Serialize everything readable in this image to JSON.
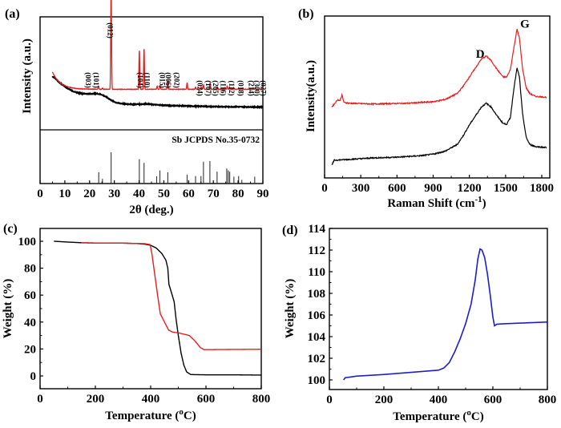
{
  "chart_data": [
    {
      "id": "a",
      "panel_label": "(a)",
      "type": "line",
      "title": "",
      "xlabel": "2θ (deg.)",
      "ylabel": "Intensity (a.u.)",
      "xlim": [
        0,
        90
      ],
      "xticks": [
        0,
        10,
        20,
        30,
        40,
        50,
        60,
        70,
        80,
        90
      ],
      "grid": false,
      "series": [
        {
          "name": "red-pattern",
          "color": "#e0201f",
          "baseline": 0.36,
          "start": 0.52,
          "peaks": [
            [
              23.6,
              0.03
            ],
            [
              25.2,
              0.01
            ],
            [
              28.7,
              0.97
            ],
            [
              40.1,
              0.36
            ],
            [
              42.0,
              0.38
            ],
            [
              47.3,
              0.03
            ],
            [
              48.5,
              0.04
            ],
            [
              51.6,
              0.08
            ],
            [
              59.4,
              0.06
            ],
            [
              62.8,
              0.02
            ],
            [
              65.0,
              0.02
            ],
            [
              66.0,
              0.04
            ],
            [
              68.7,
              0.06
            ],
            [
              71.6,
              0.02
            ],
            [
              75.6,
              0.03
            ],
            [
              76.5,
              0.02
            ],
            [
              78.3,
              0.01
            ],
            [
              80.2,
              0.01
            ],
            [
              86.9,
              0.01
            ]
          ],
          "x_start": 5
        },
        {
          "name": "black-pattern",
          "color": "#000000",
          "x_start": 5,
          "points": [
            [
              5,
              0.48
            ],
            [
              8,
              0.42
            ],
            [
              11,
              0.37
            ],
            [
              14,
              0.335
            ],
            [
              17,
              0.32
            ],
            [
              20,
              0.318
            ],
            [
              23,
              0.32
            ],
            [
              25,
              0.31
            ],
            [
              27,
              0.285
            ],
            [
              29,
              0.255
            ],
            [
              31,
              0.235
            ],
            [
              34,
              0.225
            ],
            [
              37,
              0.222
            ],
            [
              40,
              0.222
            ],
            [
              43,
              0.225
            ],
            [
              46,
              0.218
            ],
            [
              50,
              0.212
            ],
            [
              55,
              0.208
            ],
            [
              60,
              0.205
            ],
            [
              70,
              0.2
            ],
            [
              80,
              0.198
            ],
            [
              90,
              0.196
            ]
          ]
        }
      ],
      "peak_labels": [
        {
          "text": "(003)",
          "x": 17.5
        },
        {
          "text": "(101)",
          "x": 20.7
        },
        {
          "text": "(012)",
          "x": 26.4
        },
        {
          "text": "(104)",
          "x": 38.6
        },
        {
          "text": "(110)",
          "x": 41.3
        },
        {
          "text": "(015)",
          "x": 47.5
        },
        {
          "text": "(006)",
          "x": 49.8
        },
        {
          "text": "(202)",
          "x": 53.3
        },
        {
          "text": "(024)",
          "x": 62.7
        },
        {
          "text": "(107)",
          "x": 66.0
        },
        {
          "text": "(205)",
          "x": 69.0
        },
        {
          "text": "(116)",
          "x": 72.0
        },
        {
          "text": "(112)",
          "x": 75.4
        },
        {
          "text": "(018)",
          "x": 79.2
        },
        {
          "text": "(214)",
          "x": 83.4
        },
        {
          "text": "(300)",
          "x": 85.7
        },
        {
          "text": "(027)",
          "x": 88.2
        }
      ],
      "reference": {
        "label": "Sb JCPDS No.35-0732",
        "sticks": [
          [
            23.7,
            0.36
          ],
          [
            25.2,
            0.15
          ],
          [
            28.7,
            1.0
          ],
          [
            40.1,
            0.78
          ],
          [
            42.0,
            0.66
          ],
          [
            47.1,
            0.23
          ],
          [
            48.4,
            0.42
          ],
          [
            51.6,
            0.36
          ],
          [
            59.4,
            0.28
          ],
          [
            62.8,
            0.24
          ],
          [
            65.0,
            0.24
          ],
          [
            66.0,
            0.7
          ],
          [
            68.6,
            0.72
          ],
          [
            71.5,
            0.38
          ],
          [
            75.4,
            0.48
          ],
          [
            76.0,
            0.42
          ],
          [
            76.6,
            0.38
          ],
          [
            78.3,
            0.22
          ],
          [
            80.2,
            0.24
          ],
          [
            81.5,
            0.12
          ],
          [
            86.7,
            0.22
          ]
        ]
      }
    },
    {
      "id": "b",
      "panel_label": "(b)",
      "type": "line",
      "title": "",
      "xlabel": "Raman Shift (cm",
      "xlabel_sup": "-1",
      "xlabel_end": ")",
      "ylabel": "Intensity(a.u.)",
      "xlim": [
        0,
        1860
      ],
      "xticks": [
        0,
        300,
        600,
        900,
        1200,
        1500,
        1800
      ],
      "grid": false,
      "annotations": [
        {
          "text": "D",
          "x": 1290,
          "y": 0.75
        },
        {
          "text": "G",
          "x": 1660,
          "y": 0.95
        }
      ],
      "series": [
        {
          "name": "red-spectrum",
          "color": "#e0201f",
          "points": [
            [
              60,
              0.42
            ],
            [
              90,
              0.45
            ],
            [
              110,
              0.47
            ],
            [
              125,
              0.46
            ],
            [
              145,
              0.5
            ],
            [
              160,
              0.45
            ],
            [
              200,
              0.445
            ],
            [
              400,
              0.44
            ],
            [
              700,
              0.445
            ],
            [
              900,
              0.455
            ],
            [
              1000,
              0.47
            ],
            [
              1100,
              0.51
            ],
            [
              1150,
              0.56
            ],
            [
              1200,
              0.62
            ],
            [
              1250,
              0.68
            ],
            [
              1300,
              0.74
            ],
            [
              1340,
              0.76
            ],
            [
              1380,
              0.73
            ],
            [
              1430,
              0.67
            ],
            [
              1480,
              0.62
            ],
            [
              1510,
              0.62
            ],
            [
              1540,
              0.67
            ],
            [
              1570,
              0.82
            ],
            [
              1595,
              0.94
            ],
            [
              1615,
              0.88
            ],
            [
              1640,
              0.68
            ],
            [
              1670,
              0.55
            ],
            [
              1700,
              0.51
            ],
            [
              1750,
              0.49
            ],
            [
              1840,
              0.485
            ]
          ]
        },
        {
          "name": "black-spectrum",
          "color": "#000000",
          "points": [
            [
              60,
              0.03
            ],
            [
              80,
              0.065
            ],
            [
              200,
              0.07
            ],
            [
              400,
              0.08
            ],
            [
              600,
              0.085
            ],
            [
              800,
              0.095
            ],
            [
              900,
              0.105
            ],
            [
              1000,
              0.125
            ],
            [
              1100,
              0.17
            ],
            [
              1150,
              0.23
            ],
            [
              1200,
              0.3
            ],
            [
              1250,
              0.36
            ],
            [
              1300,
              0.42
            ],
            [
              1340,
              0.445
            ],
            [
              1380,
              0.42
            ],
            [
              1430,
              0.36
            ],
            [
              1480,
              0.31
            ],
            [
              1510,
              0.305
            ],
            [
              1540,
              0.35
            ],
            [
              1570,
              0.55
            ],
            [
              1595,
              0.68
            ],
            [
              1615,
              0.62
            ],
            [
              1640,
              0.38
            ],
            [
              1670,
              0.22
            ],
            [
              1700,
              0.17
            ],
            [
              1750,
              0.155
            ],
            [
              1840,
              0.15
            ]
          ]
        }
      ]
    },
    {
      "id": "c",
      "panel_label": "(c)",
      "type": "line",
      "title": "",
      "xlabel": "Temperature (",
      "xlabel_sup": "o",
      "xlabel_end": "C)",
      "ylabel": "Weight (%)",
      "xlim": [
        0,
        800
      ],
      "ylim": [
        -10,
        110
      ],
      "xticks": [
        0,
        200,
        400,
        600,
        800
      ],
      "yticks": [
        0,
        20,
        40,
        60,
        80,
        100
      ],
      "grid": false,
      "series": [
        {
          "name": "black-tga",
          "color": "#000000",
          "points": [
            [
              50,
              100
            ],
            [
              100,
              99.4
            ],
            [
              150,
              98.9
            ],
            [
              200,
              98.7
            ],
            [
              300,
              98.6
            ],
            [
              350,
              98.3
            ],
            [
              380,
              97.8
            ],
            [
              400,
              97
            ],
            [
              420,
              95
            ],
            [
              440,
              91
            ],
            [
              455,
              86
            ],
            [
              462,
              80
            ],
            [
              466,
              68
            ],
            [
              475,
              62
            ],
            [
              485,
              55
            ],
            [
              492,
              42
            ],
            [
              500,
              30
            ],
            [
              510,
              17
            ],
            [
              520,
              8
            ],
            [
              530,
              3
            ],
            [
              545,
              1
            ],
            [
              600,
              0.8
            ],
            [
              700,
              0.8
            ],
            [
              800,
              0.6
            ]
          ]
        },
        {
          "name": "red-tga",
          "color": "#e0201f",
          "points": [
            [
              150,
              98.9
            ],
            [
              200,
              98.7
            ],
            [
              300,
              98.6
            ],
            [
              380,
              98.2
            ],
            [
              398,
              97.5
            ],
            [
              405,
              90
            ],
            [
              415,
              75
            ],
            [
              425,
              60
            ],
            [
              435,
              46
            ],
            [
              450,
              40
            ],
            [
              465,
              34
            ],
            [
              480,
              32.5
            ],
            [
              500,
              32
            ],
            [
              520,
              31
            ],
            [
              540,
              30
            ],
            [
              560,
              26
            ],
            [
              580,
              21
            ],
            [
              593,
              19.5
            ],
            [
              650,
              19.6
            ],
            [
              800,
              19.8
            ]
          ]
        }
      ]
    },
    {
      "id": "d",
      "panel_label": "(d)",
      "type": "line",
      "title": "",
      "xlabel": "Temperature (",
      "xlabel_sup": "o",
      "xlabel_end": "C)",
      "ylabel": "Weight (%)",
      "xlim": [
        0,
        800
      ],
      "ylim": [
        99.1,
        114
      ],
      "xticks": [
        0,
        200,
        400,
        600,
        800
      ],
      "yticks": [
        100,
        102,
        104,
        106,
        108,
        110,
        112,
        114
      ],
      "grid": false,
      "series": [
        {
          "name": "blue-tga",
          "color": "#1d1dc8",
          "points": [
            [
              52,
              100.0
            ],
            [
              58,
              100.2
            ],
            [
              100,
              100.35
            ],
            [
              200,
              100.5
            ],
            [
              300,
              100.7
            ],
            [
              400,
              100.9
            ],
            [
              420,
              101.1
            ],
            [
              440,
              101.6
            ],
            [
              460,
              102.6
            ],
            [
              480,
              103.8
            ],
            [
              500,
              105.2
            ],
            [
              520,
              107.0
            ],
            [
              535,
              109.2
            ],
            [
              545,
              111.2
            ],
            [
              553,
              112.1
            ],
            [
              560,
              112.0
            ],
            [
              570,
              111.3
            ],
            [
              580,
              109.8
            ],
            [
              590,
              107.9
            ],
            [
              600,
              105.8
            ],
            [
              606,
              105.0
            ],
            [
              615,
              105.15
            ],
            [
              650,
              105.2
            ],
            [
              700,
              105.25
            ],
            [
              800,
              105.35
            ]
          ]
        }
      ]
    }
  ]
}
